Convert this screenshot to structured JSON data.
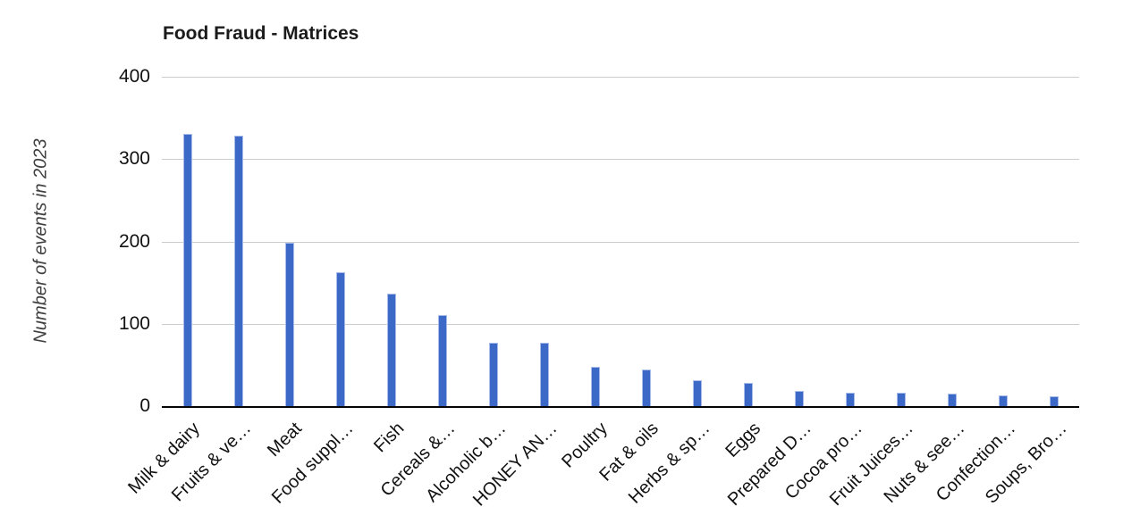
{
  "title": "Food Fraud - Matrices",
  "y_axis": {
    "title": "Number of events in 2023",
    "ticks": [
      0,
      100,
      200,
      300,
      400
    ]
  },
  "chart_data": {
    "type": "bar",
    "title": "Food Fraud - Matrices",
    "xlabel": "",
    "ylabel": "Number of events in 2023",
    "ylim": [
      0,
      400
    ],
    "grid": true,
    "legend_position": "none",
    "categories": [
      "Milk & dairy",
      "Fruits & ve…",
      "Meat",
      "Food suppl…",
      "Fish",
      "Cereals &…",
      "Alcoholic b…",
      "HONEY AN…",
      "Poultry",
      "Fat & oils",
      "Herbs & sp…",
      "Eggs",
      "Prepared D…",
      "Cocoa pro…",
      "Fruit Juices…",
      "Nuts & see…",
      "Confection…",
      "Soups, Bro…"
    ],
    "values": [
      330,
      327,
      197,
      162,
      136,
      110,
      76,
      76,
      47,
      43,
      30,
      27,
      17,
      15,
      15,
      14,
      12,
      11
    ],
    "colors": {
      "bar_fill": "#3c69c7",
      "bar_stroke": "#a7bce8",
      "gridline": "#cccccc",
      "baseline": "#050505",
      "title_text": "#1b1b1b",
      "axis_text": "#111111",
      "y_title_text": "#3f3f3f"
    }
  }
}
